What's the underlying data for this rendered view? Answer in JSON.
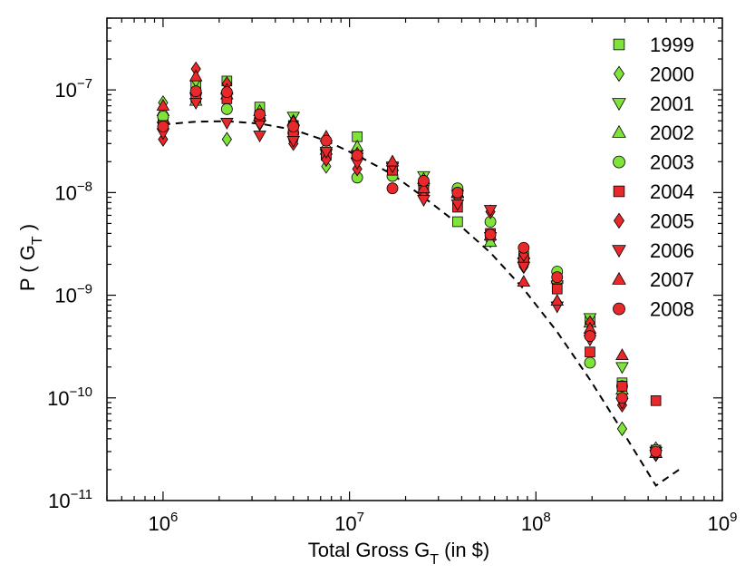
{
  "chart_data": {
    "type": "scatter",
    "title": "",
    "xlabel": "Total Gross G",
    "xlabel_sub": "T",
    "xlabel_suffix": " (in $)",
    "ylabel": "P ( G",
    "ylabel_sub": "T",
    "ylabel_suffix": " )",
    "xscale": "log",
    "yscale": "log",
    "xlim": [
      500000,
      1000000000
    ],
    "ylim": [
      1e-11,
      5e-07
    ],
    "xticks": [
      {
        "value": 1000000,
        "base": "10",
        "exp": "6"
      },
      {
        "value": 10000000,
        "base": "10",
        "exp": "7"
      },
      {
        "value": 100000000,
        "base": "10",
        "exp": "8"
      },
      {
        "value": 1000000000,
        "base": "10",
        "exp": "9"
      }
    ],
    "yticks": [
      {
        "value": 1e-11,
        "base": "10",
        "exp": "−11"
      },
      {
        "value": 1e-10,
        "base": "10",
        "exp": "−10"
      },
      {
        "value": 1e-09,
        "base": "10",
        "exp": "−9"
      },
      {
        "value": 1e-08,
        "base": "10",
        "exp": "−8"
      },
      {
        "value": 1e-07,
        "base": "10",
        "exp": "−7"
      }
    ],
    "legend_position": "top-right",
    "fit_curve": {
      "style": "dashed",
      "x": [
        1000000,
        1500000,
        2200000,
        3300000,
        5000000,
        7500000,
        11000000,
        17000000,
        25000000,
        38000000,
        57000000,
        86000000,
        130000000,
        195000000,
        290000000,
        440000000,
        610000000
      ],
      "y": [
        4.6e-08,
        4.9e-08,
        4.95e-08,
        4.7e-08,
        4.1e-08,
        3.2e-08,
        2.3e-08,
        1.5e-08,
        9e-09,
        5e-09,
        2.6e-09,
        1.15e-09,
        4.4e-10,
        1.5e-10,
        4.8e-11,
        1.4e-11,
        2.1e-11
      ]
    },
    "series": [
      {
        "name": "1999",
        "marker": "square",
        "color": "#7fe33a",
        "x": [
          1000000,
          1500000,
          2200000,
          3300000,
          5000000,
          7500000,
          11000000,
          17000000,
          25000000,
          38000000,
          57000000,
          86000000,
          130000000,
          195000000,
          290000000,
          440000000
        ],
        "y": [
          5.2e-08,
          1.1e-07,
          1.22e-07,
          6.8e-08,
          4.5e-08,
          2.4e-08,
          3.5e-08,
          1.7e-08,
          1.1e-08,
          5.2e-09,
          3.9e-09,
          2.4e-09,
          1.2e-09,
          5.6e-10,
          1.4e-10,
          3.1e-11
        ]
      },
      {
        "name": "2000",
        "marker": "diamond",
        "color": "#7fe33a",
        "x": [
          1000000,
          1500000,
          2200000,
          3300000,
          5000000,
          7500000,
          11000000,
          17000000,
          25000000,
          38000000,
          57000000,
          86000000,
          130000000,
          195000000,
          290000000,
          440000000
        ],
        "y": [
          7.5e-08,
          1.25e-07,
          3.3e-08,
          5.2e-08,
          3.2e-08,
          1.8e-08,
          2.2e-08,
          1.7e-08,
          1e-08,
          9.5e-09,
          3.4e-09,
          1.9e-09,
          1.3e-09,
          4.5e-10,
          5e-11,
          3.2e-11
        ]
      },
      {
        "name": "2001",
        "marker": "triangle-down",
        "color": "#7fe33a",
        "x": [
          1000000,
          1500000,
          2200000,
          3300000,
          5000000,
          7500000,
          11000000,
          17000000,
          25000000,
          38000000,
          57000000,
          86000000,
          130000000,
          195000000,
          290000000,
          440000000
        ],
        "y": [
          4.4e-08,
          8.5e-08,
          8.5e-08,
          4.6e-08,
          5.5e-08,
          2.4e-08,
          2.2e-08,
          1.75e-08,
          1.45e-08,
          9.5e-09,
          3.7e-09,
          2.1e-09,
          1.25e-09,
          6e-10,
          2e-10,
          3e-11
        ]
      },
      {
        "name": "2002",
        "marker": "triangle-up",
        "color": "#7fe33a",
        "x": [
          1000000,
          1500000,
          2200000,
          3300000,
          5000000,
          7500000,
          11000000,
          17000000,
          25000000,
          38000000,
          57000000,
          86000000,
          130000000,
          195000000,
          290000000,
          440000000
        ],
        "y": [
          6.2e-08,
          7.8e-08,
          9e-08,
          6.2e-08,
          5e-08,
          2.6e-08,
          2.8e-08,
          1.8e-08,
          1.35e-08,
          1e-08,
          3.3e-09,
          2.5e-09,
          1.45e-09,
          5.4e-10,
          1.2e-10,
          2.9e-11
        ]
      },
      {
        "name": "2003",
        "marker": "circle",
        "color": "#7fe33a",
        "x": [
          1000000,
          1500000,
          2200000,
          3300000,
          5000000,
          7500000,
          11000000,
          17000000,
          25000000,
          38000000,
          57000000,
          86000000,
          130000000,
          195000000,
          290000000,
          440000000
        ],
        "y": [
          5.5e-08,
          9.2e-08,
          6.5e-08,
          5.2e-08,
          3.8e-08,
          2.6e-08,
          1.4e-08,
          1.45e-08,
          1.2e-08,
          1.1e-08,
          5.2e-09,
          2.1e-09,
          1.7e-09,
          2.2e-10,
          1.3e-10,
          3.1e-11
        ]
      },
      {
        "name": "2004",
        "marker": "square",
        "color": "#e8282a",
        "x": [
          1000000,
          1500000,
          2200000,
          3300000,
          5000000,
          7500000,
          11000000,
          17000000,
          25000000,
          38000000,
          57000000,
          86000000,
          130000000,
          195000000,
          290000000,
          440000000
        ],
        "y": [
          4.5e-08,
          8.5e-08,
          8.2e-08,
          5.5e-08,
          3.7e-08,
          2.3e-08,
          2.3e-08,
          1.65e-08,
          1.05e-08,
          7.2e-09,
          4e-09,
          2.2e-09,
          1.15e-09,
          2.8e-10,
          1.3e-10,
          9.4e-11
        ]
      },
      {
        "name": "2005",
        "marker": "diamond",
        "color": "#e8282a",
        "x": [
          1000000,
          1500000,
          2200000,
          3300000,
          5000000,
          7500000,
          11000000,
          17000000,
          25000000,
          38000000,
          57000000,
          86000000,
          130000000,
          195000000,
          290000000,
          440000000
        ],
        "y": [
          3.3e-08,
          1.6e-07,
          1.15e-07,
          4.8e-08,
          3e-08,
          2.1e-08,
          1.7e-08,
          1.9e-08,
          9.2e-09,
          9e-09,
          6.5e-09,
          2.5e-09,
          8.5e-10,
          5.4e-10,
          8.5e-11,
          2.8e-11
        ]
      },
      {
        "name": "2006",
        "marker": "triangle-down",
        "color": "#e8282a",
        "x": [
          1000000,
          1500000,
          2200000,
          3300000,
          5000000,
          7500000,
          11000000,
          17000000,
          25000000,
          38000000,
          57000000,
          86000000,
          130000000,
          195000000,
          290000000,
          440000000
        ],
        "y": [
          3.8e-08,
          7.5e-08,
          4.8e-08,
          3.6e-08,
          3.2e-08,
          2.5e-08,
          1.95e-08,
          1.8e-08,
          8.5e-09,
          7.7e-09,
          6.8e-09,
          1.9e-09,
          7.8e-10,
          3.7e-10,
          9e-11,
          2.8e-11
        ]
      },
      {
        "name": "2007",
        "marker": "triangle-up",
        "color": "#e8282a",
        "x": [
          1000000,
          1500000,
          2200000,
          3300000,
          5000000,
          7500000,
          11000000,
          17000000,
          25000000,
          38000000,
          57000000,
          86000000,
          130000000,
          195000000,
          290000000,
          440000000
        ],
        "y": [
          7e-08,
          1.35e-07,
          1e-07,
          5.5e-08,
          4.9e-08,
          3.5e-08,
          2.4e-08,
          2e-08,
          1.1e-08,
          9.8e-09,
          3.8e-09,
          1.35e-09,
          8.8e-10,
          4.7e-10,
          2.6e-10,
          2.9e-11
        ]
      },
      {
        "name": "2008",
        "marker": "circle",
        "color": "#e8282a",
        "x": [
          1000000,
          1500000,
          2200000,
          3300000,
          5000000,
          7500000,
          11000000,
          17000000,
          25000000,
          38000000,
          57000000,
          86000000,
          130000000,
          195000000,
          290000000,
          440000000
        ],
        "y": [
          4.4e-08,
          9.7e-08,
          9.5e-08,
          5.8e-08,
          4.4e-08,
          3.2e-08,
          2.3e-08,
          1.1e-08,
          1.3e-08,
          1e-08,
          3.9e-09,
          2.9e-09,
          1.5e-09,
          4e-10,
          1e-10,
          3e-11
        ]
      }
    ]
  }
}
